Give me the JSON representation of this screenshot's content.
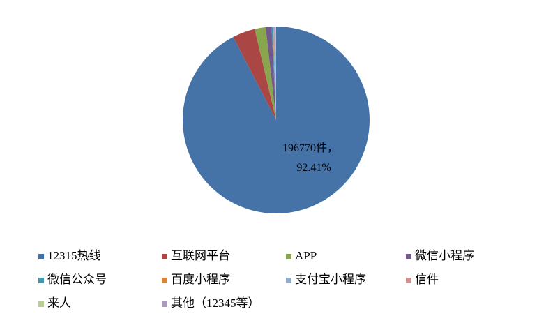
{
  "chart_data": {
    "type": "pie",
    "categories": [
      "12315热线",
      "互联网平台",
      "APP",
      "微信小程序",
      "微信公众号",
      "百度小程序",
      "支付宝小程序",
      "信件",
      "来人",
      "其他（12345等）"
    ],
    "values": [
      92.41,
      3.9,
      1.9,
      1.0,
      0.2,
      0.1,
      0.3,
      0.1,
      0.05,
      0.04
    ],
    "value_labels": [
      "196770件，92.41%",
      null,
      null,
      null,
      null,
      null,
      null,
      null,
      null,
      null
    ],
    "colors": [
      "#4572a7",
      "#aa4643",
      "#89a54e",
      "#71588f",
      "#4198af",
      "#db843d",
      "#93a9cf",
      "#d19392",
      "#b9cd96",
      "#a99bbd"
    ],
    "legend": "bottom"
  }
}
